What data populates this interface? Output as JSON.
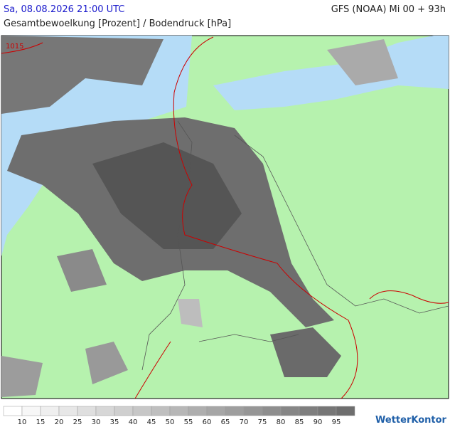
{
  "header": {
    "datetime": "Sa, 08.08.2026 21:00 UTC",
    "model": "GFS (NOAA) Mi 00 + 93h",
    "subtitle": "Gesamtbewoelkung [Prozent] / Bodendruck [hPa]"
  },
  "map": {
    "isobar_labels": [
      "1015"
    ]
  },
  "legend": {
    "ticks": [
      10,
      15,
      20,
      25,
      30,
      35,
      40,
      45,
      50,
      55,
      60,
      65,
      70,
      75,
      80,
      85,
      90,
      95
    ]
  },
  "logo": "WetterKontor"
}
